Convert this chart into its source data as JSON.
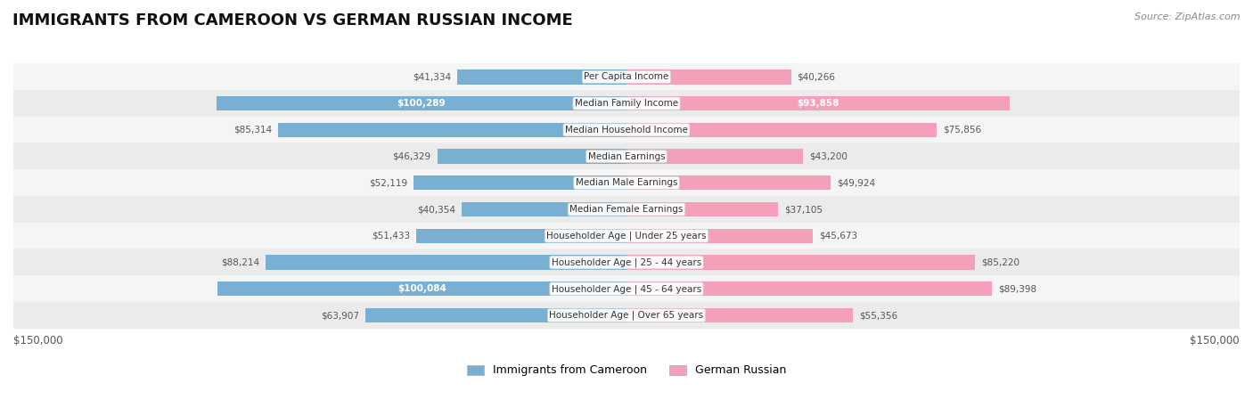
{
  "title": "IMMIGRANTS FROM CAMEROON VS GERMAN RUSSIAN INCOME",
  "source": "Source: ZipAtlas.com",
  "categories": [
    "Per Capita Income",
    "Median Family Income",
    "Median Household Income",
    "Median Earnings",
    "Median Male Earnings",
    "Median Female Earnings",
    "Householder Age | Under 25 years",
    "Householder Age | 25 - 44 years",
    "Householder Age | 45 - 64 years",
    "Householder Age | Over 65 years"
  ],
  "left_values": [
    41334,
    100289,
    85314,
    46329,
    52119,
    40354,
    51433,
    88214,
    100084,
    63907
  ],
  "right_values": [
    40266,
    93858,
    75856,
    43200,
    49924,
    37105,
    45673,
    85220,
    89398,
    55356
  ],
  "left_labels": [
    "$41,334",
    "$100,289",
    "$85,314",
    "$46,329",
    "$52,119",
    "$40,354",
    "$51,433",
    "$88,214",
    "$100,084",
    "$63,907"
  ],
  "right_labels": [
    "$40,266",
    "$93,858",
    "$75,856",
    "$43,200",
    "$49,924",
    "$37,105",
    "$45,673",
    "$85,220",
    "$89,398",
    "$55,356"
  ],
  "left_color": "#7aafd4",
  "left_color_solid": "#4a90c4",
  "right_color": "#f4a0b8",
  "right_color_solid": "#e8648a",
  "max_value": 150000,
  "bar_height": 0.55,
  "row_bg_colors": [
    "#f5f5f5",
    "#ebebeb"
  ],
  "label_inside_threshold": 90000,
  "background_color": "#ffffff",
  "legend_left": "Immigrants from Cameroon",
  "legend_right": "German Russian",
  "xlabel_left": "$150,000",
  "xlabel_right": "$150,000"
}
